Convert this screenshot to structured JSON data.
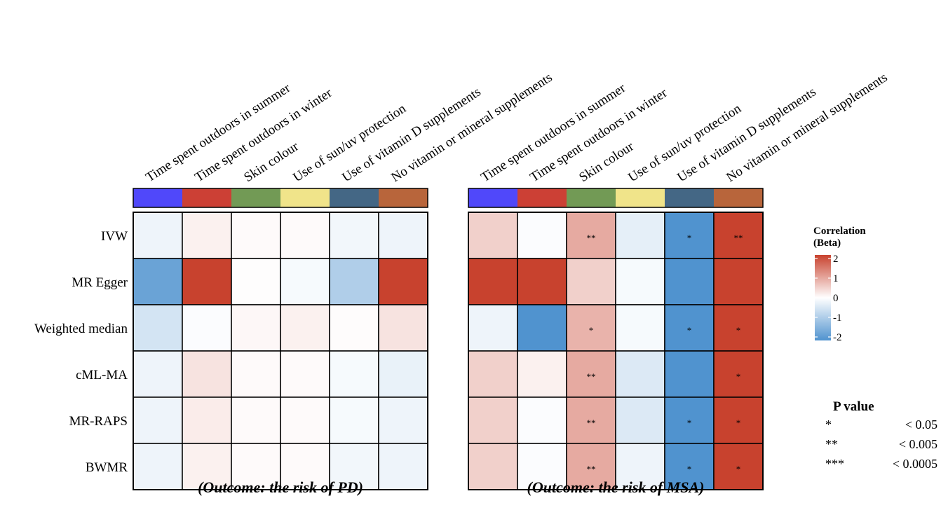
{
  "chart_data": [
    {
      "type": "heatmap",
      "title": "(Outcome: the risk of PD)",
      "columns": [
        "Time spent outdoors in summer",
        "Time spent outdoors in winter",
        "Skin colour",
        "Use of sun/uv protection",
        "Use of vitamin D supplements",
        "No vitamin or mineral supplements"
      ],
      "column_colors": [
        "#5048FA",
        "#CC4035",
        "#729A55",
        "#F0E48A",
        "#446785",
        "#B8653B"
      ],
      "rows": [
        "IVW",
        "MR Egger",
        "Weighted median",
        "cML-MA",
        "MR-RAPS",
        "BWMR"
      ],
      "values": [
        [
          -0.2,
          0.15,
          0.05,
          0.05,
          -0.15,
          -0.2
        ],
        [
          -1.7,
          2.0,
          0.02,
          -0.1,
          -0.9,
          2.0
        ],
        [
          -0.5,
          -0.05,
          0.08,
          0.15,
          0.03,
          0.3
        ],
        [
          -0.2,
          0.3,
          0.05,
          0.05,
          -0.1,
          -0.25
        ],
        [
          -0.2,
          0.2,
          0.05,
          0.05,
          -0.1,
          -0.2
        ],
        [
          -0.2,
          0.15,
          0.05,
          0.05,
          -0.15,
          -0.2
        ]
      ],
      "significance": [
        [
          "",
          "",
          "",
          "",
          "",
          ""
        ],
        [
          "",
          "",
          "",
          "",
          "",
          ""
        ],
        [
          "",
          "",
          "",
          "",
          "",
          ""
        ],
        [
          "",
          "",
          "",
          "",
          "",
          ""
        ],
        [
          "",
          "",
          "",
          "",
          "",
          ""
        ],
        [
          "",
          "",
          "",
          "",
          "",
          ""
        ]
      ]
    },
    {
      "type": "heatmap",
      "title": "(Outcome: the risk of MSA)",
      "columns": [
        "Time spent outdoors in summer",
        "Time spent outdoors in winter",
        "Skin colour",
        "Use of sun/uv protection",
        "Use of vitamin D supplements",
        "No vitamin or mineral supplements"
      ],
      "column_colors": [
        "#5048FA",
        "#CC4035",
        "#729A55",
        "#F0E48A",
        "#446785",
        "#B8653B"
      ],
      "rows": [
        "IVW",
        "MR Egger",
        "Weighted median",
        "cML-MA",
        "MR-RAPS",
        "BWMR"
      ],
      "values": [
        [
          0.5,
          -0.05,
          0.9,
          -0.3,
          -2.0,
          2.0
        ],
        [
          2.0,
          2.0,
          0.5,
          -0.1,
          -2.0,
          2.0
        ],
        [
          -0.2,
          -2.0,
          0.8,
          -0.1,
          -2.0,
          2.0
        ],
        [
          0.5,
          0.15,
          0.9,
          -0.4,
          -2.0,
          2.0
        ],
        [
          0.5,
          -0.05,
          0.9,
          -0.4,
          -2.0,
          2.0
        ],
        [
          0.5,
          -0.05,
          0.9,
          -0.2,
          -2.0,
          2.0
        ]
      ],
      "significance": [
        [
          "",
          "",
          "**",
          "",
          "*",
          "**"
        ],
        [
          "",
          "",
          "",
          "",
          "",
          ""
        ],
        [
          "",
          "",
          "*",
          "",
          "*",
          "*"
        ],
        [
          "",
          "",
          "**",
          "",
          "",
          "*"
        ],
        [
          "",
          "",
          "**",
          "",
          "*",
          "*"
        ],
        [
          "",
          "",
          "**",
          "",
          "*",
          "*"
        ]
      ]
    }
  ],
  "colorbar": {
    "title_line1": "Correlation",
    "title_line2": "(Beta)",
    "min": -2,
    "max": 2,
    "ticks": [
      2,
      1,
      0,
      -1,
      -2
    ],
    "tick_labels": [
      "2",
      "1",
      "0",
      "-1",
      "-2"
    ],
    "low_color": "#5093CF",
    "mid_color": "#FFFFFF",
    "high_color": "#C8422E"
  },
  "pvalue_legend": {
    "title": "P value",
    "entries": [
      {
        "symbol": "*",
        "label": "< 0.05"
      },
      {
        "symbol": "**",
        "label": "< 0.005"
      },
      {
        "symbol": "***",
        "label": "< 0.0005"
      }
    ]
  }
}
